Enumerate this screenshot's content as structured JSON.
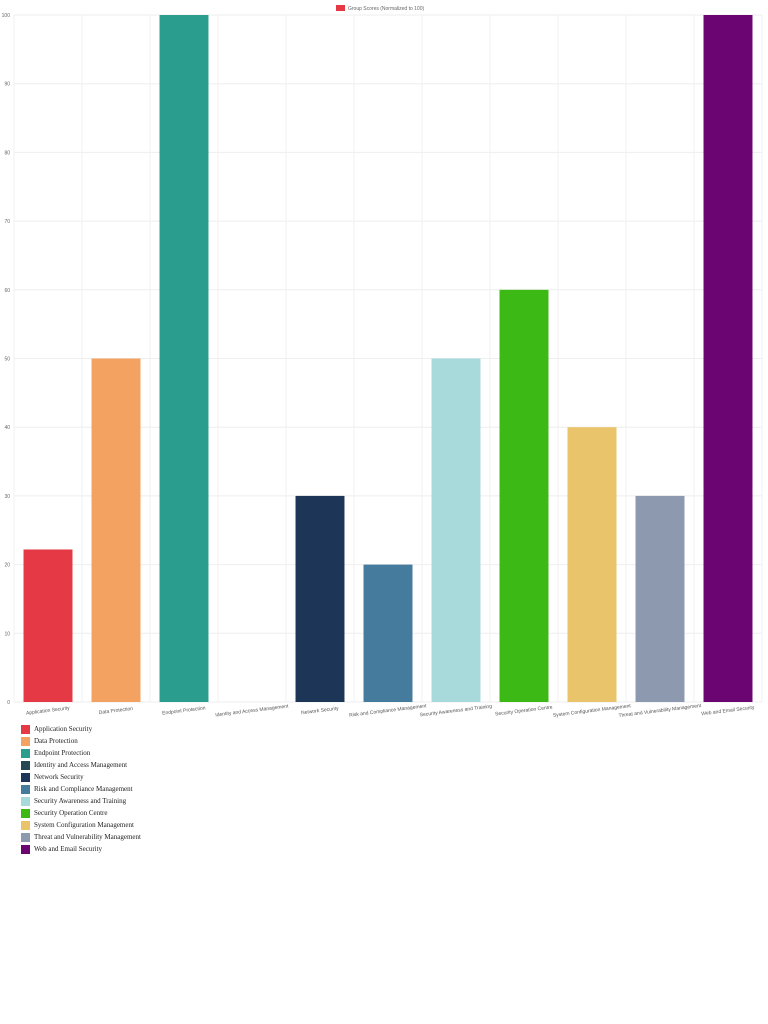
{
  "chart_data": {
    "type": "bar",
    "title": "",
    "xlabel": "",
    "ylabel": "",
    "ylim": [
      0,
      100
    ],
    "yticks": [
      0,
      10,
      20,
      30,
      40,
      50,
      60,
      70,
      80,
      90,
      100
    ],
    "grid": true,
    "legend_top": {
      "label": "Group Scores (Normalized to 100)",
      "color": "#e63946",
      "placement": "top-center"
    },
    "categories": [
      "Application Security",
      "Data Protection",
      "Endpoint Protection",
      "Identity and Access Management",
      "Network Security",
      "Risk and Compliance Management",
      "Security Awareness and Training",
      "Security Operation Centre",
      "System Configuration Management",
      "Threat and Vulnerability Management",
      "Web and Email Security"
    ],
    "values": [
      22.2,
      50,
      100,
      0,
      30,
      20,
      50,
      60,
      40,
      30,
      100
    ],
    "colors": [
      "#e63946",
      "#f4a261",
      "#2a9d8f",
      "#264653",
      "#1d3557",
      "#457b9d",
      "#a8dadc",
      "#3cb914",
      "#e9c46a",
      "#8d99ae",
      "#6a0572"
    ],
    "legend_bottom_placement": "bottom-left"
  }
}
